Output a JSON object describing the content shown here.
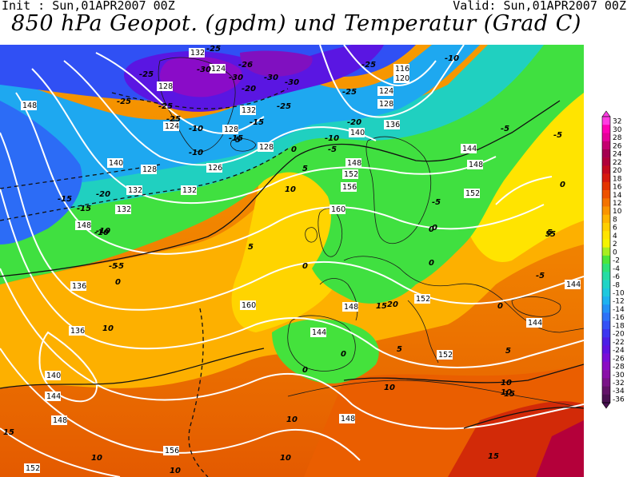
{
  "header": {
    "init": "Init : Sun,01APR2007 00Z",
    "valid": "Valid: Sun,01APR2007 00Z",
    "title": "850 hPa Geopot. (gpdm) und Temperatur (Grad C)"
  },
  "legend": {
    "labels": [
      "32",
      "30",
      "28",
      "26",
      "24",
      "22",
      "20",
      "18",
      "16",
      "14",
      "12",
      "10",
      "8",
      "6",
      "4",
      "2",
      "0",
      "-2",
      "-4",
      "-6",
      "-8",
      "-10",
      "-12",
      "-14",
      "-16",
      "-18",
      "-20",
      "-22",
      "-24",
      "-26",
      "-28",
      "-30",
      "-32",
      "-34",
      "-36"
    ],
    "colors": [
      "#ff3de2",
      "#ff00b4",
      "#e6009a",
      "#c40070",
      "#a40050",
      "#b0003a",
      "#c40a1e",
      "#d61a0e",
      "#e43400",
      "#ee5200",
      "#f47300",
      "#fa9400",
      "#ffb400",
      "#ffcf00",
      "#ffe400",
      "#f4f400",
      "#a8ee20",
      "#4ce63a",
      "#2ee278",
      "#26dca4",
      "#20d4c6",
      "#1ec8de",
      "#1eb2f0",
      "#2492f6",
      "#2e72f8",
      "#3452f6",
      "#3c36f0",
      "#4c1ee6",
      "#6012e0",
      "#7a0ed6",
      "#8a0cc4",
      "#8a10a8",
      "#7a1488",
      "#621468",
      "#4a1252"
    ]
  },
  "map": {
    "geopotential_labels": [
      "132",
      "124",
      "116",
      "120",
      "124",
      "128",
      "132",
      "128",
      "124",
      "128",
      "126",
      "128",
      "136",
      "140",
      "144",
      "148",
      "152",
      "156",
      "160",
      "148",
      "152",
      "128",
      "132",
      "132",
      "148",
      "136",
      "136",
      "140",
      "144",
      "148",
      "156",
      "152",
      "160",
      "148",
      "144",
      "148",
      "152",
      "152",
      "144",
      "144",
      "140",
      "132",
      "148"
    ],
    "temperature_labels": [
      "-25",
      "-26",
      "-25",
      "-30",
      "-30",
      "-30",
      "-25",
      "-20",
      "-25",
      "-30",
      "-25",
      "-10",
      "-25",
      "-25",
      "-15",
      "-20",
      "-15",
      "-10",
      "-10",
      "-5",
      "-5",
      "-15",
      "-10",
      "-5",
      "0",
      "5",
      "10",
      "-25",
      "-10",
      "-20",
      "-15",
      "-10",
      "-5",
      "0",
      "5",
      "0",
      "-5",
      "0",
      "-5",
      "5",
      "10",
      "5",
      "10",
      "10",
      "15",
      "10",
      "10",
      "15",
      "20",
      "15",
      "0",
      "0",
      "0",
      "0",
      "10",
      "5",
      "10",
      "10",
      "15",
      "-5",
      "0",
      "5",
      "0",
      "-5",
      "5"
    ]
  }
}
